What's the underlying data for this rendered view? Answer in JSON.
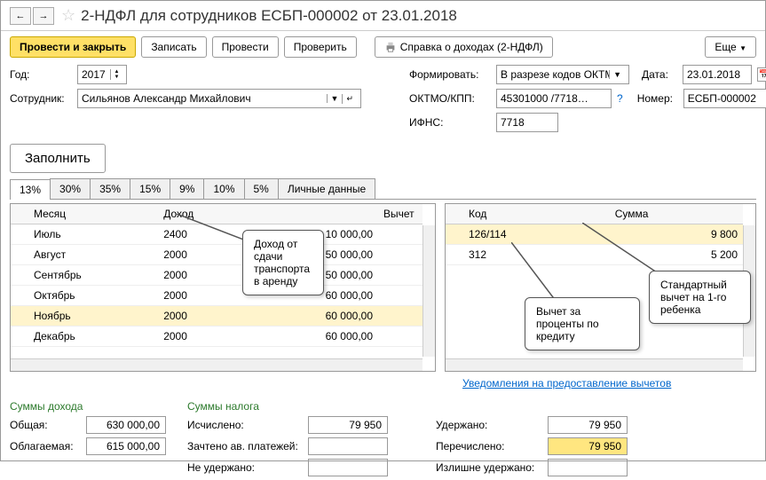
{
  "title": "2-НДФЛ для сотрудников ЕСБП-000002 от 23.01.2018",
  "toolbar": {
    "save_close": "Провести и закрыть",
    "write": "Записать",
    "post": "Провести",
    "check": "Проверить",
    "report": "Справка о доходах (2-НДФЛ)",
    "more": "Еще"
  },
  "form": {
    "year_label": "Год:",
    "year": "2017",
    "employee_label": "Сотрудник:",
    "employee": "Сильянов Александр Михайлович",
    "form_label": "Формировать:",
    "form_value": "В разрезе кодов ОКТМО",
    "date_label": "Дата:",
    "date": "23.01.2018",
    "oktmo_label": "ОКТМО/КПП:",
    "oktmo": "45301000  /7718…",
    "number_label": "Номер:",
    "number": "ЕСБП-000002",
    "ifns_label": "ИФНС:",
    "ifns": "7718"
  },
  "fill_btn": "Заполнить",
  "tabs": [
    "13%",
    "30%",
    "35%",
    "15%",
    "9%",
    "10%",
    "5%",
    "Личные данные"
  ],
  "left_table": {
    "headers": [
      "Месяц",
      "Доход",
      "",
      "Вычет"
    ],
    "rows": [
      {
        "month": "Июль",
        "code": "2400",
        "income": "10 000,00",
        "hl": false
      },
      {
        "month": "Август",
        "code": "2000",
        "income": "50 000,00",
        "hl": false
      },
      {
        "month": "Сентябрь",
        "code": "2000",
        "income": "50 000,00",
        "hl": false
      },
      {
        "month": "Октябрь",
        "code": "2000",
        "income": "60 000,00",
        "hl": false
      },
      {
        "month": "Ноябрь",
        "code": "2000",
        "income": "60 000,00",
        "hl": true
      },
      {
        "month": "Декабрь",
        "code": "2000",
        "income": "60 000,00",
        "hl": false
      }
    ]
  },
  "right_table": {
    "headers": [
      "Код",
      "Сумма"
    ],
    "rows": [
      {
        "code": "126/114",
        "sum": "9 800",
        "hl": true
      },
      {
        "code": "312",
        "sum": "5 200",
        "hl": false
      }
    ]
  },
  "link": "Уведомления на предоставление вычетов",
  "totals": {
    "income_title": "Суммы дохода",
    "tax_title": "Суммы налога",
    "total_label": "Общая:",
    "total": "630 000,00",
    "taxable_label": "Облагаемая:",
    "taxable": "615 000,00",
    "calc_label": "Исчислено:",
    "calc": "79 950",
    "offset_label": "Зачтено ав. платежей:",
    "offset": "",
    "notheld_label": "Не удержано:",
    "notheld": "",
    "held_label": "Удержано:",
    "held": "79 950",
    "transf_label": "Перечислено:",
    "transf": "79 950",
    "excess_label": "Излишне удержано:",
    "excess": ""
  },
  "callouts": {
    "c1": "Доход от сдачи транспорта в аренду",
    "c2": "Вычет за проценты по кредиту",
    "c3": "Стандартный вычет на 1-го ребенка"
  }
}
